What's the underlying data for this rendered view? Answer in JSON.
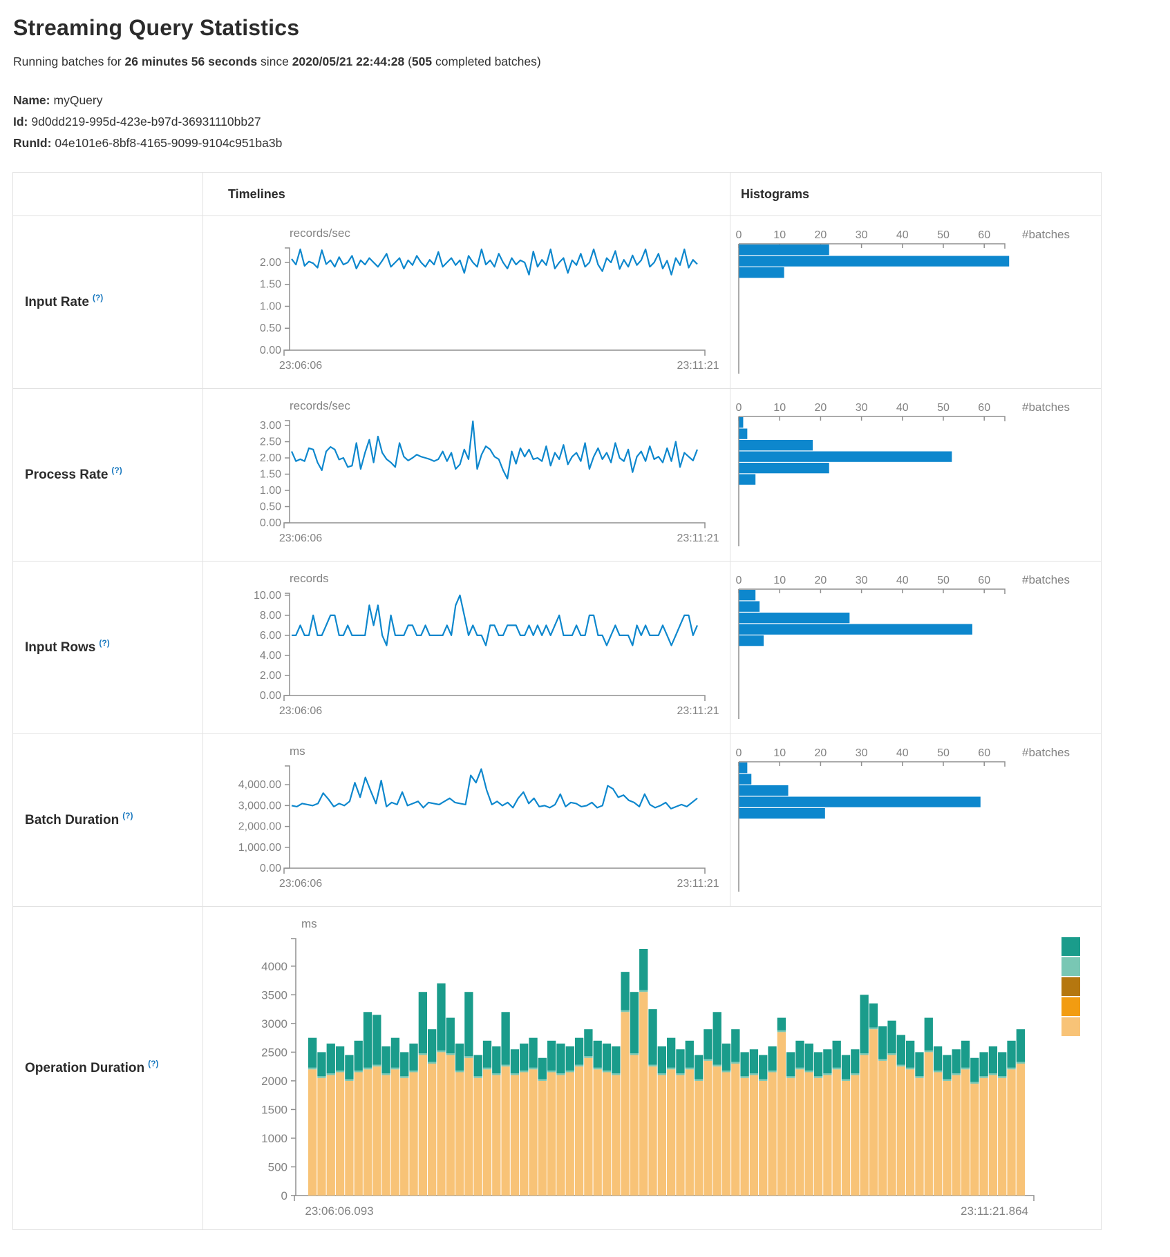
{
  "header": {
    "title": "Streaming Query Statistics",
    "running": {
      "t1": "Running batches for ",
      "b1": "26 minutes 56 seconds",
      "t2": " since ",
      "b2": "2020/05/21 22:44:28",
      "t3": " (",
      "b3": "505",
      "t4": " completed batches)"
    },
    "meta": {
      "name_label": "Name:",
      "name_value": "myQuery",
      "id_label": "Id:",
      "id_value": "9d0dd219-995d-423e-b97d-36931110bb27",
      "runid_label": "RunId:",
      "runid_value": "04e101e6-8bf8-4165-9099-9104c951ba3b"
    }
  },
  "colors": {
    "line": "#0d87cd",
    "hist_bar": "#0d87cd",
    "axis": "#8f8f8f",
    "tick_text": "#828282",
    "teal": "#1a9c8b",
    "light_teal": "#79c7b4",
    "ochre": "#b5770f",
    "orange": "#f29c11",
    "tan": "#f8c377"
  },
  "table": {
    "col_timelines": "Timelines",
    "col_histograms": "Histograms",
    "batches_label": "#batches",
    "rows": [
      {
        "label": "Input Rate",
        "help": "(?)",
        "timeline": {
          "unit": "records/sec",
          "ymax": 2.33,
          "color": "#0d87cd",
          "x0": "23:06:06",
          "x1": "23:11:21",
          "yticks": [
            [
              0,
              "0.00"
            ],
            [
              0.5,
              "0.50"
            ],
            [
              1,
              "1.00"
            ],
            [
              1.5,
              "1.50"
            ],
            [
              2,
              "2.00"
            ]
          ],
          "values": [
            2.08,
            1.95,
            2.3,
            1.92,
            2.02,
            1.98,
            1.88,
            2.28,
            1.96,
            2.05,
            1.9,
            2.12,
            1.95,
            2.0,
            2.15,
            1.86,
            2.05,
            1.95,
            2.1,
            2.0,
            1.9,
            2.04,
            2.2,
            1.9,
            2.0,
            2.1,
            1.86,
            2.05,
            1.94,
            2.15,
            2.0,
            1.9,
            2.06,
            1.95,
            2.24,
            1.9,
            2.0,
            2.1,
            1.94,
            2.05,
            1.76,
            2.15,
            2.0,
            1.9,
            2.3,
            1.95,
            2.05,
            1.9,
            2.2,
            2.0,
            1.86,
            2.1,
            1.95,
            2.05,
            2.0,
            1.72,
            2.25,
            1.9,
            2.06,
            1.94,
            2.3,
            1.86,
            2.0,
            2.1,
            1.76,
            2.05,
            1.94,
            2.2,
            1.9,
            2.0,
            2.3,
            1.95,
            1.8,
            2.1,
            2.0,
            2.26,
            1.85,
            2.06,
            1.9,
            2.16,
            1.94,
            2.05,
            2.3,
            1.9,
            2.0,
            2.2,
            1.86,
            2.04,
            1.72,
            2.1,
            1.94,
            2.3,
            1.88,
            2.06,
            1.96
          ]
        },
        "histogram": {
          "xticks": [
            0,
            10,
            20,
            30,
            40,
            50,
            60
          ],
          "bars": [
            22,
            66,
            11
          ]
        }
      },
      {
        "label": "Process Rate",
        "help": "(?)",
        "timeline": {
          "unit": "records/sec",
          "ymax": 3.15,
          "color": "#0d87cd",
          "x0": "23:06:06",
          "x1": "23:11:21",
          "yticks": [
            [
              0,
              "0.00"
            ],
            [
              0.5,
              "0.50"
            ],
            [
              1,
              "1.00"
            ],
            [
              1.5,
              "1.50"
            ],
            [
              2,
              "2.00"
            ],
            [
              2.5,
              "2.50"
            ],
            [
              3,
              "3.00"
            ]
          ],
          "values": [
            2.2,
            1.9,
            1.96,
            1.9,
            2.3,
            2.26,
            1.86,
            1.62,
            2.2,
            2.34,
            2.26,
            1.95,
            2.0,
            1.72,
            1.76,
            2.46,
            1.66,
            2.16,
            2.56,
            1.86,
            2.66,
            2.16,
            1.96,
            1.86,
            1.72,
            2.46,
            2.04,
            1.92,
            2.0,
            2.1,
            2.04,
            2.0,
            1.96,
            1.9,
            1.96,
            2.2,
            1.9,
            2.16,
            1.66,
            1.8,
            2.26,
            1.96,
            3.13,
            1.66,
            2.1,
            2.36,
            2.26,
            2.04,
            1.96,
            1.62,
            1.36,
            2.2,
            1.82,
            2.3,
            2.04,
            2.26,
            1.96,
            2.0,
            1.9,
            2.36,
            1.76,
            2.16,
            1.96,
            2.4,
            1.8,
            2.04,
            2.16,
            1.9,
            2.46,
            1.66,
            2.04,
            2.3,
            1.96,
            2.16,
            1.86,
            2.46,
            2.0,
            1.9,
            2.26,
            1.56,
            2.04,
            2.2,
            1.9,
            2.36,
            1.96,
            2.04,
            1.86,
            2.3,
            1.9,
            2.5,
            1.72,
            2.16,
            2.04,
            1.92,
            2.26
          ]
        },
        "histogram": {
          "xticks": [
            0,
            10,
            20,
            30,
            40,
            50,
            60
          ],
          "bars": [
            1,
            2,
            18,
            52,
            22,
            4
          ]
        }
      },
      {
        "label": "Input Rows",
        "help": "(?)",
        "timeline": {
          "unit": "records",
          "ymax": 10.2,
          "color": "#0d87cd",
          "x0": "23:06:06",
          "x1": "23:11:21",
          "yticks": [
            [
              0,
              "0.00"
            ],
            [
              2,
              "2.00"
            ],
            [
              4,
              "4.00"
            ],
            [
              6,
              "6.00"
            ],
            [
              8,
              "8.00"
            ],
            [
              10,
              "10.00"
            ]
          ],
          "values": [
            6,
            6,
            7,
            6,
            6,
            8,
            6,
            6,
            7,
            8,
            8,
            6,
            6,
            7,
            6,
            6,
            6,
            6,
            9,
            7,
            9,
            6,
            5,
            8,
            6,
            6,
            6,
            7,
            7,
            6,
            6,
            7,
            6,
            6,
            6,
            6,
            7,
            6,
            9,
            10,
            8,
            6,
            7,
            6,
            6,
            5,
            7,
            7,
            6,
            6,
            7,
            7,
            7,
            6,
            6,
            7,
            6,
            7,
            6,
            7,
            6,
            7,
            8,
            6,
            6,
            6,
            7,
            6,
            6,
            8,
            8,
            6,
            6,
            5,
            6,
            7,
            6,
            6,
            6,
            5,
            7,
            6,
            7,
            6,
            6,
            6,
            7,
            6,
            5,
            6,
            7,
            8,
            8,
            6,
            7
          ]
        },
        "histogram": {
          "xticks": [
            0,
            10,
            20,
            30,
            40,
            50,
            60
          ],
          "bars": [
            4,
            5,
            27,
            57,
            6
          ]
        }
      },
      {
        "label": "Batch Duration",
        "help": "(?)",
        "timeline": {
          "unit": "ms",
          "ymax": 4900,
          "color": "#0d87cd",
          "x0": "23:06:06",
          "x1": "23:11:21",
          "yticks": [
            [
              0,
              "0.00"
            ],
            [
              1000,
              "1,000.00"
            ],
            [
              2000,
              "2,000.00"
            ],
            [
              3000,
              "3,000.00"
            ],
            [
              4000,
              "4,000.00"
            ]
          ],
          "values": [
            3000,
            2950,
            3100,
            3050,
            3000,
            3100,
            3600,
            3300,
            2950,
            3100,
            3000,
            3200,
            4100,
            3400,
            4350,
            3700,
            3100,
            4200,
            2950,
            3150,
            3050,
            3650,
            3000,
            3100,
            3200,
            2900,
            3150,
            3100,
            3050,
            3200,
            3350,
            3150,
            3100,
            3050,
            4450,
            4100,
            4750,
            3750,
            3050,
            3200,
            3000,
            3150,
            2900,
            3350,
            3650,
            3100,
            3350,
            2950,
            3000,
            2900,
            3050,
            3550,
            2950,
            3150,
            3100,
            2950,
            3000,
            3150,
            2900,
            3000,
            3950,
            3800,
            3400,
            3500,
            3250,
            3150,
            2950,
            3550,
            3050,
            2900,
            3000,
            3150,
            2850,
            2950,
            3050,
            2950,
            3150,
            3350
          ]
        },
        "histogram": {
          "xticks": [
            0,
            10,
            20,
            30,
            40,
            50,
            60
          ],
          "bars": [
            2,
            3,
            12,
            59,
            21
          ]
        }
      }
    ]
  },
  "operation": {
    "label": "Operation Duration",
    "help": "(?)",
    "chart": {
      "unit": "ms",
      "ymax": 4480,
      "x0": "23:06:06.093",
      "x1": "23:11:21.864",
      "yticks": [
        [
          0,
          "0"
        ],
        [
          500,
          "500"
        ],
        [
          1000,
          "1000"
        ],
        [
          1500,
          "1500"
        ],
        [
          2000,
          "2000"
        ],
        [
          2500,
          "2500"
        ],
        [
          3000,
          "3000"
        ],
        [
          3500,
          "3500"
        ],
        [
          4000,
          "4000"
        ]
      ],
      "sliver": 30,
      "lower_color": "#f8c377",
      "sliver_color": "#79c7b4",
      "upper_color": "#1a9c8b",
      "legend": [
        "#1a9c8b",
        "#79c7b4",
        "#b5770f",
        "#f29c11",
        "#f8c377"
      ],
      "lower": [
        2200,
        2050,
        2100,
        2150,
        2000,
        2150,
        2200,
        2250,
        2100,
        2200,
        2050,
        2150,
        2450,
        2300,
        2500,
        2450,
        2150,
        2400,
        2050,
        2200,
        2100,
        2250,
        2100,
        2150,
        2200,
        2000,
        2150,
        2100,
        2150,
        2250,
        2400,
        2200,
        2150,
        2100,
        3200,
        2450,
        3550,
        2250,
        2100,
        2200,
        2100,
        2200,
        2000,
        2350,
        2250,
        2150,
        2300,
        2050,
        2100,
        2000,
        2150,
        2850,
        2050,
        2200,
        2150,
        2050,
        2100,
        2200,
        2000,
        2100,
        2450,
        2900,
        2350,
        2450,
        2250,
        2200,
        2050,
        2500,
        2150,
        2000,
        2100,
        2200,
        1950,
        2050,
        2100,
        2050,
        2200,
        2300
      ],
      "upper": [
        520,
        420,
        520,
        420,
        420,
        520,
        970,
        870,
        470,
        520,
        420,
        470,
        1070,
        570,
        1170,
        620,
        470,
        1120,
        370,
        470,
        470,
        920,
        420,
        470,
        520,
        370,
        520,
        520,
        420,
        470,
        470,
        470,
        470,
        470,
        670,
        1070,
        720,
        970,
        470,
        520,
        420,
        470,
        420,
        520,
        920,
        470,
        570,
        420,
        420,
        420,
        420,
        220,
        420,
        470,
        470,
        420,
        420,
        470,
        420,
        420,
        1020,
        420,
        570,
        570,
        520,
        470,
        420,
        570,
        420,
        420,
        420,
        470,
        420,
        420,
        470,
        420,
        470,
        570
      ]
    }
  }
}
